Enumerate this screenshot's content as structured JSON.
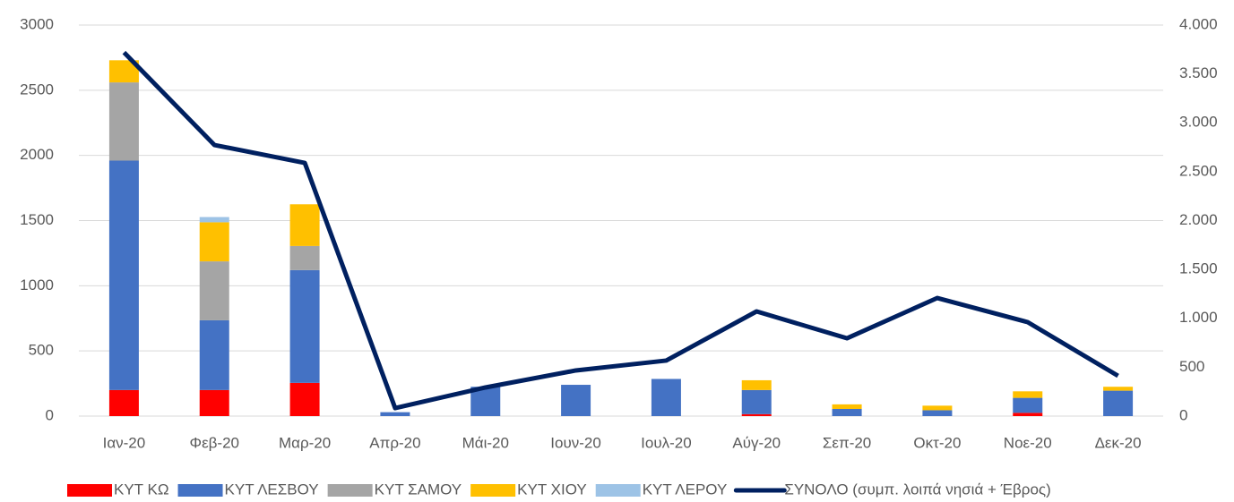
{
  "chart_data": {
    "type": "bar",
    "categories": [
      "Ιαν-20",
      "Φεβ-20",
      "Μαρ-20",
      "Απρ-20",
      "Μάι-20",
      "Ιουν-20",
      "Ιουλ-20",
      "Αύγ-20",
      "Σεπ-20",
      "Οκτ-20",
      "Νοε-20",
      "Δεκ-20"
    ],
    "series": [
      {
        "name": "ΚΥΤ ΚΩ",
        "color": "#ff0000",
        "values": [
          200,
          200,
          255,
          0,
          0,
          0,
          0,
          15,
          0,
          0,
          25,
          0
        ]
      },
      {
        "name": "ΚΥΤ ΛΕΣΒΟΥ",
        "color": "#4472c4",
        "values": [
          1760,
          535,
          865,
          30,
          225,
          240,
          285,
          185,
          55,
          45,
          115,
          195
        ]
      },
      {
        "name": "ΚΥΤ ΣΑΜΟΥ",
        "color": "#a5a5a5",
        "values": [
          600,
          452,
          185,
          0,
          0,
          0,
          0,
          0,
          0,
          0,
          0,
          0
        ]
      },
      {
        "name": "ΚΥΤ ΧΙΟΥ",
        "color": "#ffc000",
        "values": [
          170,
          300,
          320,
          0,
          0,
          0,
          0,
          75,
          35,
          35,
          50,
          30
        ]
      },
      {
        "name": "ΚΥΤ ΛΕΡΟΥ",
        "color": "#9dc3e6",
        "values": [
          0,
          40,
          0,
          0,
          0,
          0,
          0,
          0,
          0,
          0,
          0,
          0
        ]
      },
      {
        "name": "ΣΥΝΟΛΟ (συμπ. λοιπά νησιά + Έβρος)",
        "color": "#002060",
        "type": "line",
        "axis": "y2",
        "values": [
          3720,
          2773,
          2590,
          82,
          293,
          467,
          568,
          1071,
          796,
          1208,
          961,
          412
        ]
      }
    ],
    "ylim": [
      0,
      3000
    ],
    "yticks": [
      0,
      500,
      1000,
      1500,
      2000,
      2500,
      3000
    ],
    "y2lim": [
      0,
      4000
    ],
    "y2ticks": [
      0,
      500,
      {
        "value": 1000,
        "label": "1.000"
      },
      {
        "value": 1500,
        "label": "1.500"
      },
      {
        "value": 2000,
        "label": "2.000"
      },
      {
        "value": 2500,
        "label": "2.500"
      },
      {
        "value": 3000,
        "label": "3.000"
      },
      {
        "value": 3500,
        "label": "3.500"
      },
      {
        "value": 4000,
        "label": "4.000"
      }
    ],
    "grid": true,
    "legend": "bottom"
  }
}
